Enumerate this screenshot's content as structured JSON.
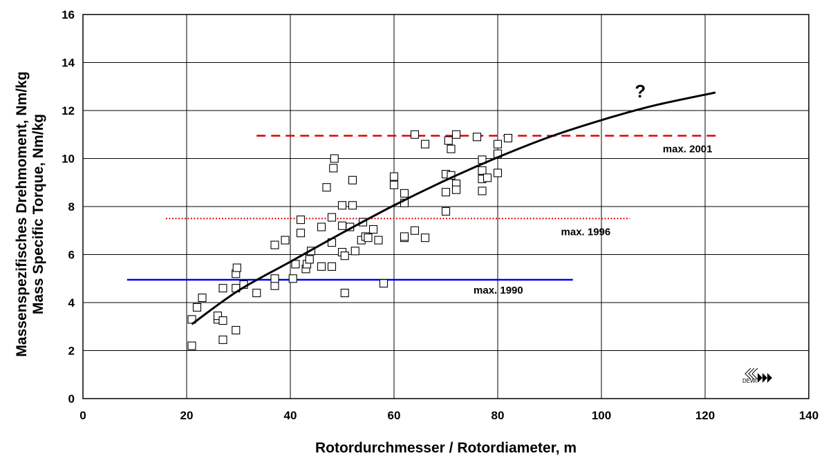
{
  "chart_data": {
    "type": "scatter",
    "xlabel": "Rotordurchmesser / Rotordiameter, m",
    "ylabel_line1": "Massenspezifisches Drehmoment, Nm/kg",
    "ylabel_line2": "Mass Specific Torque, Nm/kg",
    "xlim": [
      0,
      140
    ],
    "ylim": [
      0,
      16
    ],
    "xticks": [
      "0",
      "20",
      "40",
      "60",
      "80",
      "100",
      "120",
      "140"
    ],
    "yticks": [
      "0",
      "2",
      "4",
      "6",
      "8",
      "10",
      "12",
      "14",
      "16"
    ],
    "grid": true,
    "points": [
      [
        21,
        2.2
      ],
      [
        21,
        3.3
      ],
      [
        22,
        3.8
      ],
      [
        23,
        4.2
      ],
      [
        26,
        3.3
      ],
      [
        26,
        3.45
      ],
      [
        27,
        3.25
      ],
      [
        27,
        2.45
      ],
      [
        27,
        4.6
      ],
      [
        29.5,
        2.85
      ],
      [
        29.5,
        4.6
      ],
      [
        29.5,
        5.2
      ],
      [
        29.7,
        5.45
      ],
      [
        31,
        4.75
      ],
      [
        33.5,
        4.4
      ],
      [
        37,
        4.7
      ],
      [
        37,
        5.0
      ],
      [
        37,
        6.4
      ],
      [
        39,
        6.6
      ],
      [
        40.5,
        5.0
      ],
      [
        41,
        5.6
      ],
      [
        42,
        6.9
      ],
      [
        42,
        7.45
      ],
      [
        43,
        5.4
      ],
      [
        43.2,
        5.6
      ],
      [
        43.7,
        5.8
      ],
      [
        44,
        6.15
      ],
      [
        46,
        5.5
      ],
      [
        46,
        7.15
      ],
      [
        47,
        8.8
      ],
      [
        48,
        5.5
      ],
      [
        48,
        6.5
      ],
      [
        48,
        7.55
      ],
      [
        48.3,
        9.6
      ],
      [
        48.5,
        10.0
      ],
      [
        50,
        6.1
      ],
      [
        50,
        7.2
      ],
      [
        50,
        8.05
      ],
      [
        50.5,
        4.4
      ],
      [
        50.5,
        5.95
      ],
      [
        51.5,
        7.15
      ],
      [
        52,
        8.05
      ],
      [
        52,
        9.1
      ],
      [
        52.5,
        6.15
      ],
      [
        53.7,
        6.6
      ],
      [
        54,
        7.35
      ],
      [
        54.5,
        6.75
      ],
      [
        55,
        6.7
      ],
      [
        56,
        7.05
      ],
      [
        57,
        6.6
      ],
      [
        58,
        4.8
      ],
      [
        60,
        8.9
      ],
      [
        60,
        9.25
      ],
      [
        62,
        6.7
      ],
      [
        62,
        6.75
      ],
      [
        62,
        8.15
      ],
      [
        62,
        8.55
      ],
      [
        64,
        7.0
      ],
      [
        64,
        11.0
      ],
      [
        66,
        6.7
      ],
      [
        66,
        10.6
      ],
      [
        70,
        7.8
      ],
      [
        70,
        8.6
      ],
      [
        70,
        9.35
      ],
      [
        70.5,
        10.75
      ],
      [
        71,
        9.3
      ],
      [
        71,
        10.4
      ],
      [
        72,
        8.95
      ],
      [
        72,
        8.7
      ],
      [
        72,
        11.0
      ],
      [
        76,
        10.9
      ],
      [
        77,
        8.65
      ],
      [
        77,
        9.15
      ],
      [
        77,
        9.5
      ],
      [
        77,
        9.95
      ],
      [
        78,
        9.2
      ],
      [
        80,
        9.4
      ],
      [
        80,
        10.2
      ],
      [
        80,
        10.6
      ],
      [
        82,
        10.85
      ]
    ],
    "trend": {
      "name": "trend",
      "x": [
        21,
        30,
        40,
        50,
        60,
        70,
        80,
        90,
        100,
        110,
        122
      ],
      "y": [
        3.1,
        4.5,
        5.7,
        6.9,
        8.05,
        9.1,
        10.05,
        10.9,
        11.6,
        12.2,
        12.75
      ]
    },
    "reference_lines": [
      {
        "label": "max. 1990",
        "y": 4.95,
        "x_from": 8.5,
        "x_to": 94.5,
        "color": "#0000ee",
        "style": "solid"
      },
      {
        "label": "max. 1996",
        "y": 7.5,
        "x_from": 16,
        "x_to": 105.5,
        "color": "#e00000",
        "style": "dotted"
      },
      {
        "label": "max. 2001",
        "y": 10.95,
        "x_from": 33.5,
        "x_to": 123,
        "color": "#e00000",
        "style": "dashed"
      }
    ],
    "annotation_question": "?",
    "logo_text": "DEWI"
  }
}
